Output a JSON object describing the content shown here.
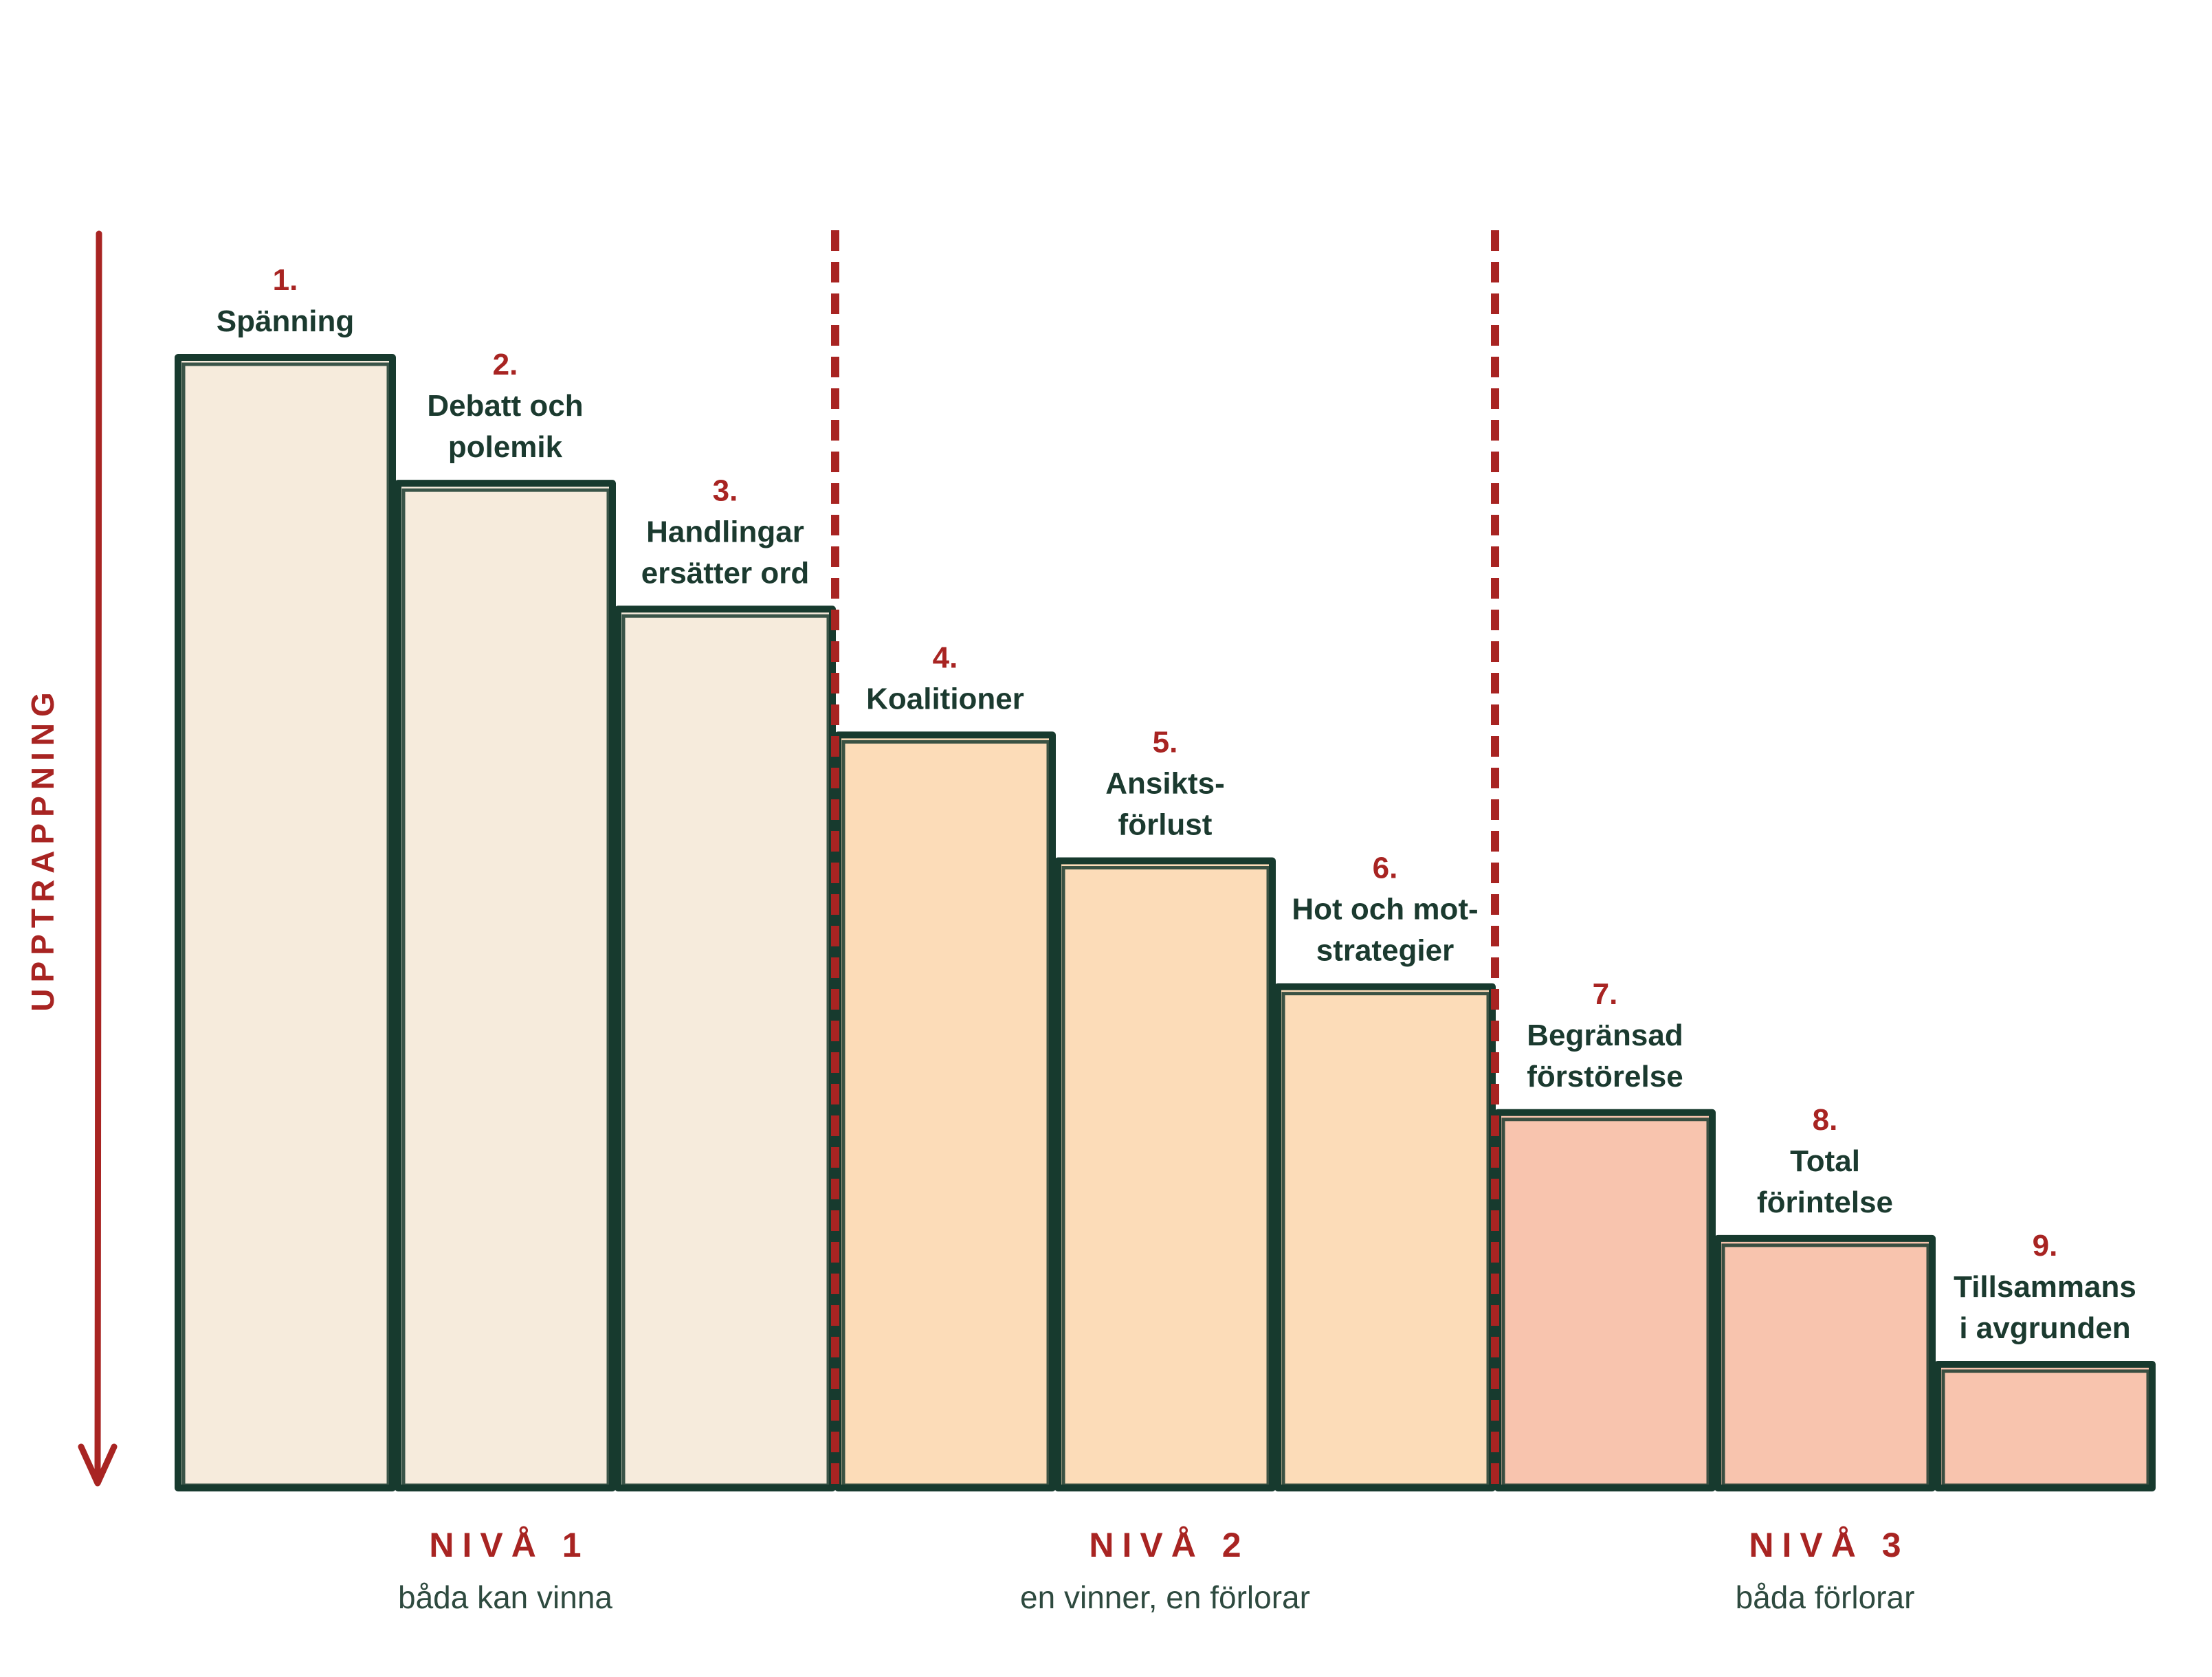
{
  "chart_data": {
    "type": "bar",
    "axis_label": "UPPTRAPPNING",
    "axis_direction": "down",
    "categories": [
      {
        "number": "1.",
        "lines": [
          "Spänning"
        ]
      },
      {
        "number": "2.",
        "lines": [
          "Debatt och",
          "polemik"
        ]
      },
      {
        "number": "3.",
        "lines": [
          "Handlingar",
          "ersätter ord"
        ]
      },
      {
        "number": "4.",
        "lines": [
          "Koalitioner"
        ]
      },
      {
        "number": "5.",
        "lines": [
          "Ansikts-",
          "förlust"
        ]
      },
      {
        "number": "6.",
        "lines": [
          "Hot och mot-",
          "strategier"
        ]
      },
      {
        "number": "7.",
        "lines": [
          "Begränsad",
          "förstörelse"
        ]
      },
      {
        "number": "8.",
        "lines": [
          "Total",
          "förintelse"
        ]
      },
      {
        "number": "9.",
        "lines": [
          "Tillsammans",
          "i avgrunden"
        ]
      }
    ],
    "values": [
      9,
      8,
      7,
      6,
      5,
      4,
      3,
      2,
      1
    ],
    "levels": [
      {
        "title": "NIVÅ 1",
        "subtitle": "båda kan vinna",
        "bars": [
          0,
          1,
          2
        ],
        "color": "#f6ebdc"
      },
      {
        "title": "NIVÅ 2",
        "subtitle": "en vinner, en förlorar",
        "bars": [
          3,
          4,
          5
        ],
        "color": "#fcdcb8"
      },
      {
        "title": "NIVÅ 3",
        "subtitle": "båda förlorar",
        "bars": [
          6,
          7,
          8
        ],
        "color": "#f8c4ae"
      }
    ],
    "dividers_after_bars": [
      2,
      5
    ],
    "colors": {
      "outline": "#173a2e",
      "accent": "#a82422",
      "label_text": "#1b3a2f"
    }
  }
}
